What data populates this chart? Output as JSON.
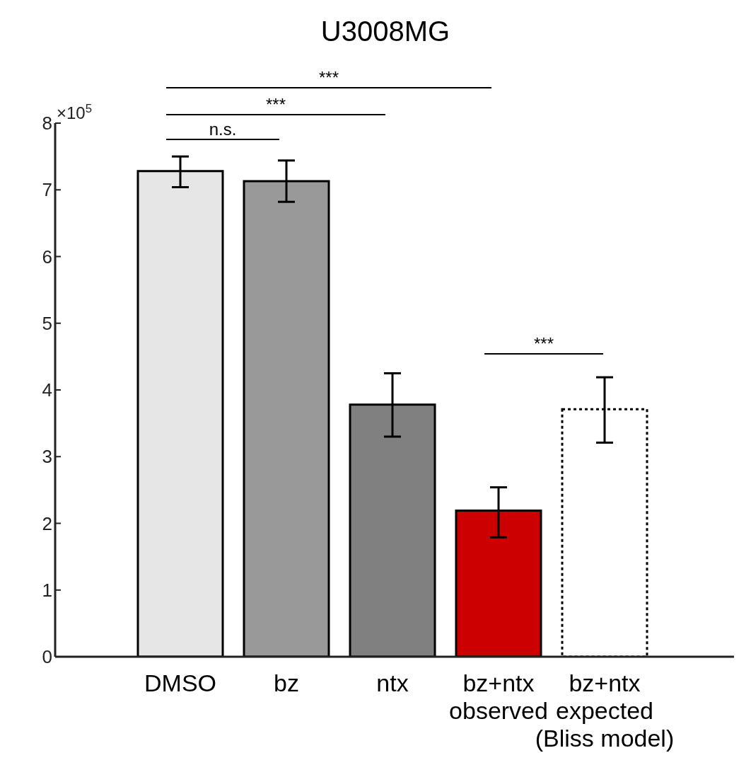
{
  "chart_data": {
    "type": "bar",
    "title": "U3008MG",
    "stacked": true,
    "categories": [
      "DMSO",
      "bz",
      "ntx",
      "bz+ntx\nobserved",
      "bz+ntx\nexpected\n(Bliss model)"
    ],
    "series": [
      {
        "colors": [
          "#e6e6e6",
          "#999999",
          "#808080",
          "#cc0000",
          null
        ],
        "values": [
          7.28,
          7.13,
          3.78,
          2.19,
          null
        ],
        "errors": [
          [
            7.04,
            7.5
          ],
          [
            6.82,
            7.44
          ],
          [
            3.3,
            4.25
          ],
          [
            1.79,
            2.54
          ],
          null
        ]
      },
      {
        "color": "#ffffff",
        "line_style": "dotted",
        "values": [
          null,
          null,
          null,
          null,
          3.71
        ],
        "errors": [
          null,
          null,
          null,
          null,
          [
            3.21,
            4.19
          ]
        ]
      }
    ],
    "ylim": [
      0,
      8
    ],
    "yticks": [
      0,
      1,
      2,
      3,
      4,
      5,
      6,
      7,
      8
    ],
    "grid": false,
    "legend": false,
    "annotations": [
      "×10$^{5}$",
      "n.s.",
      "***",
      "***",
      "***"
    ]
  }
}
